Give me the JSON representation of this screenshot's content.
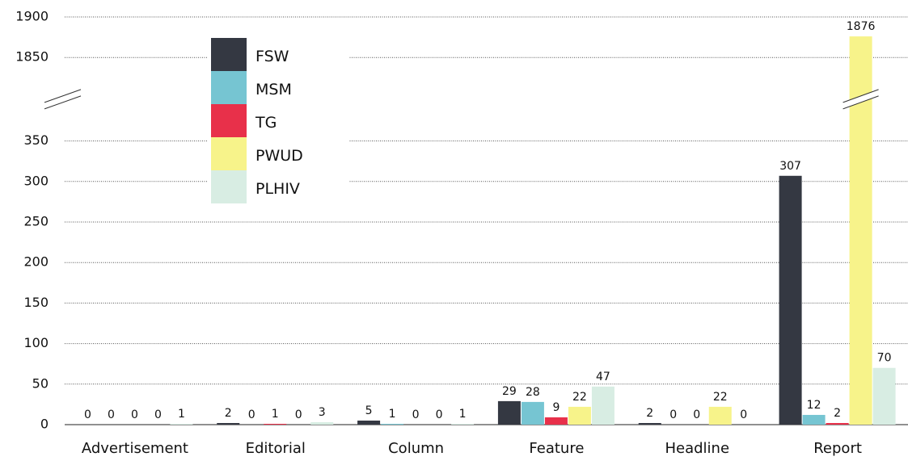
{
  "chart_data": {
    "type": "bar",
    "categories": [
      "Advertisement",
      "Editorial",
      "Column",
      "Feature",
      "Headline",
      "Report"
    ],
    "series": [
      {
        "name": "FSW",
        "color": "#343842",
        "values": [
          0,
          2,
          5,
          29,
          2,
          307
        ]
      },
      {
        "name": "MSM",
        "color": "#76c5d2",
        "values": [
          0,
          0,
          1,
          28,
          0,
          12
        ]
      },
      {
        "name": "TG",
        "color": "#e8304a",
        "values": [
          0,
          1,
          0,
          9,
          0,
          2
        ]
      },
      {
        "name": "PWUD",
        "color": "#f7f38a",
        "values": [
          0,
          0,
          0,
          22,
          22,
          1876
        ]
      },
      {
        "name": "PLHIV",
        "color": "#d8ede3",
        "values": [
          1,
          3,
          1,
          47,
          0,
          70
        ]
      }
    ],
    "ylim": [
      0,
      1900
    ],
    "yticks": [
      0,
      50,
      100,
      150,
      200,
      250,
      300,
      350,
      1850,
      1900
    ],
    "axis_break": true,
    "grid": true,
    "legend": "upper left"
  }
}
